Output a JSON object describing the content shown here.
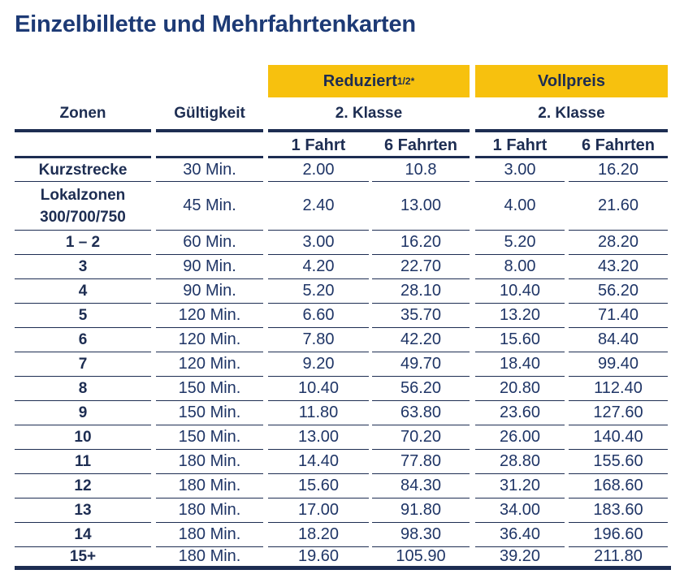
{
  "title": "Einzelbillette und Mehrfahrtenkarten",
  "headers": {
    "zonen": "Zonen",
    "gueltigkeit": "Gültigkeit",
    "reduziert_label": "Reduziert ",
    "reduziert_fraction": "1/2",
    "reduziert_mark": "*",
    "vollpreis": "Vollpreis",
    "klasse_reduziert": "2. Klasse",
    "klasse_vollpreis": "2. Klasse",
    "sub": [
      "1 Fahrt",
      "6 Fahrten",
      "1 Fahrt",
      "6 Fahrten"
    ]
  },
  "colors": {
    "accent": "#f7c10e",
    "navy": "#1d2d52",
    "title": "#1d3a75"
  },
  "rows": [
    {
      "zone": "Kurzstrecke",
      "valid": "30 Min.",
      "r1": "2.00",
      "r6": "10.8",
      "v1": "3.00",
      "v6": "16.20"
    },
    {
      "zone": "Lokalzonen\n300/700/750",
      "valid": "45 Min.",
      "r1": "2.40",
      "r6": "13.00",
      "v1": "4.00",
      "v6": "21.60"
    },
    {
      "zone": "1 – 2",
      "valid": "60 Min.",
      "r1": "3.00",
      "r6": "16.20",
      "v1": "5.20",
      "v6": "28.20"
    },
    {
      "zone": "3",
      "valid": "90 Min.",
      "r1": "4.20",
      "r6": "22.70",
      "v1": "8.00",
      "v6": "43.20"
    },
    {
      "zone": "4",
      "valid": "90 Min.",
      "r1": "5.20",
      "r6": "28.10",
      "v1": "10.40",
      "v6": "56.20"
    },
    {
      "zone": "5",
      "valid": "120 Min.",
      "r1": "6.60",
      "r6": "35.70",
      "v1": "13.20",
      "v6": "71.40"
    },
    {
      "zone": "6",
      "valid": "120 Min.",
      "r1": "7.80",
      "r6": "42.20",
      "v1": "15.60",
      "v6": "84.40"
    },
    {
      "zone": "7",
      "valid": "120 Min.",
      "r1": "9.20",
      "r6": "49.70",
      "v1": "18.40",
      "v6": "99.40"
    },
    {
      "zone": "8",
      "valid": "150 Min.",
      "r1": "10.40",
      "r6": "56.20",
      "v1": "20.80",
      "v6": "112.40"
    },
    {
      "zone": "9",
      "valid": "150 Min.",
      "r1": "11.80",
      "r6": "63.80",
      "v1": "23.60",
      "v6": "127.60"
    },
    {
      "zone": "10",
      "valid": "150 Min.",
      "r1": "13.00",
      "r6": "70.20",
      "v1": "26.00",
      "v6": "140.40"
    },
    {
      "zone": "11",
      "valid": "180 Min.",
      "r1": "14.40",
      "r6": "77.80",
      "v1": "28.80",
      "v6": "155.60"
    },
    {
      "zone": "12",
      "valid": "180 Min.",
      "r1": "15.60",
      "r6": "84.30",
      "v1": "31.20",
      "v6": "168.60"
    },
    {
      "zone": "13",
      "valid": "180 Min.",
      "r1": "17.00",
      "r6": "91.80",
      "v1": "34.00",
      "v6": "183.60"
    },
    {
      "zone": "14",
      "valid": "180 Min.",
      "r1": "18.20",
      "r6": "98.30",
      "v1": "36.40",
      "v6": "196.60"
    },
    {
      "zone": "15+",
      "valid": "180 Min.",
      "r1": "19.60",
      "r6": "105.90",
      "v1": "39.20",
      "v6": "211.80"
    }
  ]
}
